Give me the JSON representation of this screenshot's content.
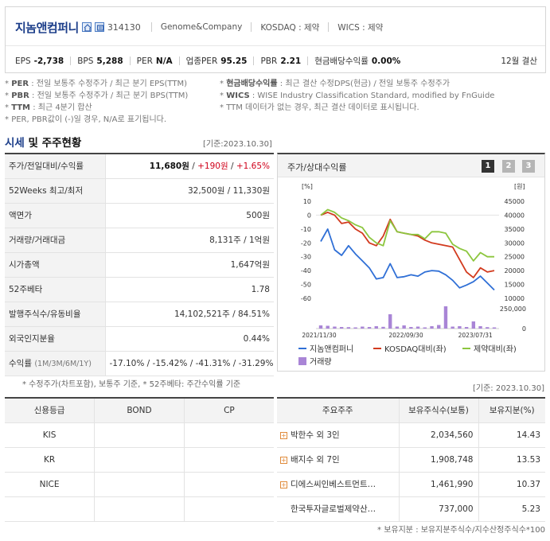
{
  "header": {
    "company_name": "지놈앤컴퍼니",
    "code": "314130",
    "eng_name": "Genome&Company",
    "market": "KOSDAQ : 제약",
    "wics": "WICS : 제약",
    "metrics": [
      {
        "label": "EPS",
        "value": "-2,738"
      },
      {
        "label": "BPS",
        "value": "5,288"
      },
      {
        "label": "PER",
        "value": "N/A"
      },
      {
        "label": "업종PER",
        "value": "95.25"
      },
      {
        "label": "PBR",
        "value": "2.21"
      },
      {
        "label": "현금배당수익률",
        "value": "0.00%"
      }
    ],
    "settlement": "12월 결산"
  },
  "notes": {
    "left": [
      {
        "key": "PER",
        "text": " : 전일 보통주 수정주가 / 최근 분기 EPS(TTM)"
      },
      {
        "key": "PBR",
        "text": " : 전일 보통주 수정주가 / 최근 분기 BPS(TTM)"
      },
      {
        "key": "TTM",
        "text": " : 최근 4분기 합산"
      },
      {
        "key": "",
        "text": "PER, PBR값이 (-)일 경우, N/A로 표기됩니다."
      }
    ],
    "right": [
      {
        "key": "현금배당수익률",
        "text": " : 최근 결산 수정DPS(현금) / 전일 보통주 수정주가"
      },
      {
        "key": "WICS",
        "text": " : WISE Industry Classification Standard, modified by FnGuide"
      },
      {
        "key": "",
        "text": "TTM 데이터가 없는 경우, 최근 결산 데이터로 표시됩니다."
      }
    ]
  },
  "market_section": {
    "title_a": "시세",
    "title_b": " 및 주주현황",
    "date": "[기준:2023.10.30]",
    "rows": [
      {
        "label": "주가/전일대비/수익률",
        "value": "11,680원",
        "change": "+190원",
        "rate": "+1.65%"
      },
      {
        "label": "52Weeks 최고/최저",
        "value": "32,500원 / 11,330원"
      },
      {
        "label": "액면가",
        "value": "500원"
      },
      {
        "label": "거래량/거래대금",
        "value": "8,131주 / 1억원"
      },
      {
        "label": "시가총액",
        "value": "1,647억원"
      },
      {
        "label": "52주베타",
        "value": "1.78"
      },
      {
        "label": "발행주식수/유동비율",
        "value": "14,102,521주 / 84.51%"
      },
      {
        "label": "외국인지분율",
        "value": "0.44%"
      },
      {
        "label": "수익률",
        "sub": "(1M/3M/6M/1Y)",
        "value": "-17.10% / -15.42% / -41.31% / -31.29%"
      }
    ],
    "footnote": "* 수정주가(차트포함), 보통주 기준, * 52주베타: 주간수익률 기준"
  },
  "chart_panel": {
    "title": "주가/상대수익률",
    "pages": [
      "1",
      "2",
      "3"
    ],
    "left_unit": "[%]",
    "right_unit": "[원]"
  },
  "chart_data": {
    "type": "line",
    "x_ticks": [
      "2021/11/30",
      "2022/09/30",
      "2023/07/31"
    ],
    "left_ylim": [
      -60,
      10
    ],
    "left_ticks": [
      "10",
      "0",
      "-10",
      "-20",
      "-30",
      "-40",
      "-50",
      "-60"
    ],
    "right_ylim": [
      10000,
      45000
    ],
    "right_ticks": [
      "45000",
      "40000",
      "35000",
      "30000",
      "25000",
      "20000",
      "15000",
      "10000"
    ],
    "volume_ticks": [
      "250,000",
      "0"
    ],
    "volume_max": 300000,
    "series": [
      {
        "name": "지놈앤컴퍼니",
        "color": "#2f6fd6",
        "axis": "right",
        "values": [
          30500,
          35000,
          27500,
          25500,
          29000,
          26000,
          23500,
          21000,
          17000,
          17500,
          22500,
          17500,
          17800,
          18500,
          18000,
          19500,
          20000,
          19800,
          18500,
          16500,
          13800,
          14800,
          16000,
          18000,
          15500,
          13000
        ]
      },
      {
        "name": "KOSDAQ대비(좌)",
        "color": "#d23a1e",
        "axis": "left",
        "values": [
          0,
          2,
          0,
          -6,
          -5,
          -10,
          -13,
          -20,
          -22,
          -15,
          -3,
          -12,
          -13,
          -14,
          -15,
          -18,
          -20,
          -21,
          -22,
          -23,
          -32,
          -41,
          -45,
          -38,
          -41,
          -40
        ]
      },
      {
        "name": "제약대비(좌)",
        "color": "#8cc63e",
        "axis": "left",
        "values": [
          0,
          4,
          2,
          -2,
          -4,
          -7,
          -9,
          -16,
          -20,
          -22,
          -4,
          -12,
          -13,
          -14,
          -14,
          -17,
          -12,
          -12,
          -13,
          -21,
          -24,
          -26,
          -33,
          -27,
          -30,
          -30
        ]
      }
    ],
    "volume": {
      "name": "거래량",
      "color": "#a985d6",
      "values": [
        40000,
        35000,
        25000,
        20000,
        18000,
        15000,
        25000,
        20000,
        30000,
        22000,
        180000,
        25000,
        40000,
        20000,
        25000,
        15000,
        30000,
        45000,
        280000,
        25000,
        30000,
        20000,
        90000,
        30000,
        18000,
        15000
      ]
    }
  },
  "credit": {
    "headers": [
      "신용등급",
      "BOND",
      "CP"
    ],
    "rows": [
      [
        "KIS",
        "",
        ""
      ],
      [
        "KR",
        "",
        ""
      ],
      [
        "NICE",
        "",
        ""
      ],
      [
        "",
        "",
        ""
      ]
    ]
  },
  "holders": {
    "date": "[기준: 2023.10.30]",
    "headers": [
      "주요주주",
      "보유주식수(보통)",
      "보유지분(%)"
    ],
    "rows": [
      {
        "name": "박한수 외 3인",
        "shares": "2,034,560",
        "pct": "14.43",
        "plus": true
      },
      {
        "name": "배지수 외 7인",
        "shares": "1,908,748",
        "pct": "13.53",
        "plus": true
      },
      {
        "name": "디에스씨인베스트먼트…",
        "shares": "1,461,990",
        "pct": "10.37",
        "plus": true
      },
      {
        "name": "한국투자글로벌제약산…",
        "shares": "737,000",
        "pct": "5.23",
        "plus": false
      }
    ],
    "footnote": "* 보유지분 : 보유지분주식수/지수산정주식수*100"
  },
  "colors": {
    "accent": "#1c3e8a",
    "up": "#d0021b",
    "down": "#1a56c8",
    "page_active": "#333333",
    "page_inactive": "#b5b5b5"
  }
}
